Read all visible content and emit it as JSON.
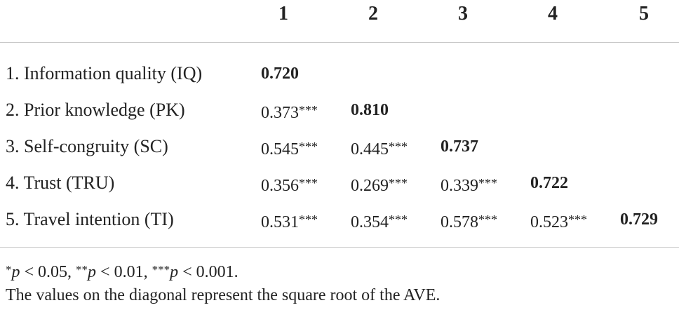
{
  "table": {
    "column_headers": [
      "1",
      "2",
      "3",
      "4",
      "5"
    ],
    "rows": [
      {
        "label": "1. Information quality (IQ)",
        "values": [
          "0.720"
        ],
        "diagonal_index": 0
      },
      {
        "label": "2. Prior knowledge (PK)",
        "values": [
          "0.373***",
          "0.810"
        ],
        "diagonal_index": 1
      },
      {
        "label": "3. Self-congruity (SC)",
        "values": [
          "0.545***",
          "0.445***",
          "0.737"
        ],
        "diagonal_index": 2
      },
      {
        "label": "4. Trust (TRU)",
        "values": [
          "0.356***",
          "0.269***",
          "0.339***",
          "0.722"
        ],
        "diagonal_index": 3
      },
      {
        "label": "5. Travel intention (TI)",
        "values": [
          "0.531***",
          "0.354***",
          "0.578***",
          "0.523***",
          "0.729"
        ],
        "diagonal_index": 4
      }
    ]
  },
  "footnotes": {
    "significance": "*p < 0.05, **p < 0.01, ***p < 0.001.",
    "note": "The values on the diagonal represent the square root of the AVE."
  }
}
